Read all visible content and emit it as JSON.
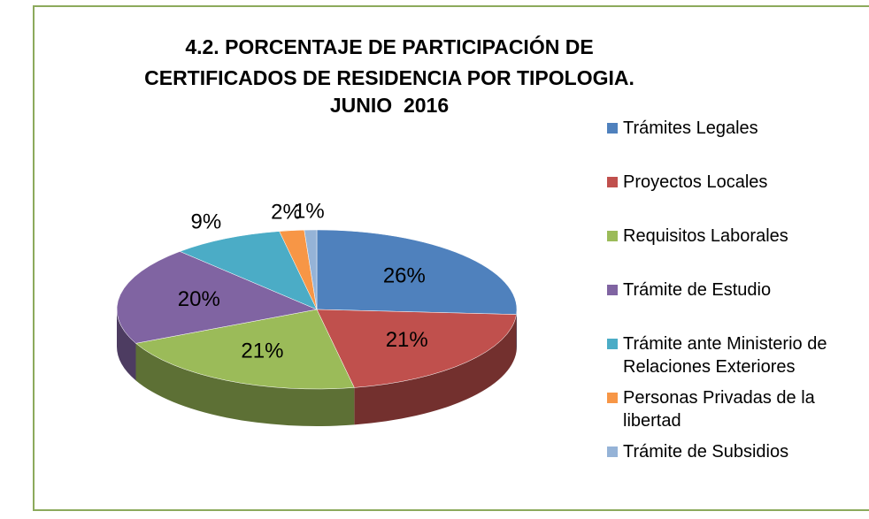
{
  "chart_data": {
    "type": "pie3d",
    "title": "4.2. PORCENTAJE DE PARTICIPACIÓN DE CERTIFICADOS DE RESIDENCIA POR TIPOLOGIA.",
    "subtitle": "JUNIO  2016",
    "categories": [
      "Trámites Legales",
      "Proyectos Locales",
      "Requisitos Laborales",
      "Trámite de Estudio",
      "Trámite ante Ministerio de Relaciones Exteriores",
      "Personas Privadas de la libertad",
      "Trámite de Subsidios"
    ],
    "values": [
      26,
      21,
      21,
      20,
      9,
      2,
      1
    ],
    "value_labels": [
      "26%",
      "21%",
      "21%",
      "20%",
      "9%",
      "2%",
      "1%"
    ],
    "colors": [
      "#4f81bd",
      "#c0504d",
      "#9bbb59",
      "#8064a2",
      "#4bacc6",
      "#f79646",
      "#95b3d7"
    ],
    "legend": "right"
  }
}
